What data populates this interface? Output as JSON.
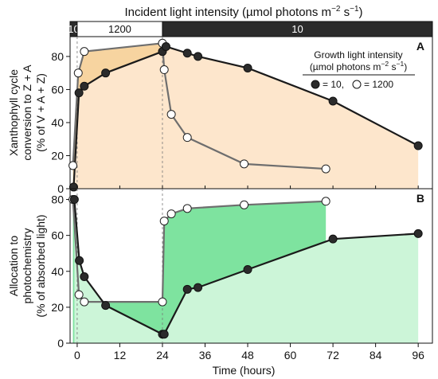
{
  "header": {
    "title_prefix": "Incident light intensity (µmol photons m",
    "title_sup": "−2",
    "title_mid": " s",
    "title_sup2": "−1",
    "title_suffix": ")",
    "bar_segments": [
      {
        "label": "10",
        "from": -2,
        "to": 0,
        "fill": "#2b2b2b",
        "text": "#ffffff"
      },
      {
        "label": "1200",
        "from": 0,
        "to": 24,
        "fill": "#ffffff",
        "text": "#111111"
      },
      {
        "label": "10",
        "from": 24,
        "to": 100,
        "fill": "#2b2b2b",
        "text": "#ffffff"
      }
    ]
  },
  "legend": {
    "title_line1": "Growth light intensity",
    "title_line2_prefix": "(µmol photons m",
    "title_line2_sup": "−2",
    "title_line2_mid": " s",
    "title_line2_sup2": "−1",
    "title_line2_suffix": ")",
    "entry_dark": "= 10,",
    "entry_light": "= 1200"
  },
  "colors": {
    "panelA_fill_dark": "#f7d4a0",
    "panelA_fill_light": "#fde6cc",
    "panelB_fill_dark": "#7ee39f",
    "panelB_fill_light": "#ccf5d8",
    "line_dark": "#1a1a1a",
    "line_light": "#6e6e6e"
  },
  "chart_data": [
    {
      "panel": "A",
      "type": "line",
      "ylabel_lines": [
        "Xanthophyll cycle",
        "conversion to Z + A",
        "(% of V + A + Z)"
      ],
      "ylim": [
        0,
        92
      ],
      "yticks": [
        0,
        20,
        40,
        60,
        80
      ],
      "xlim": [
        -2,
        100
      ],
      "series": [
        {
          "name": "= 10",
          "marker": "filled",
          "x": [
            -1,
            0.5,
            2,
            8,
            24,
            25,
            31,
            34,
            48,
            72,
            96
          ],
          "y": [
            1,
            58,
            62,
            70,
            83,
            86,
            82,
            80,
            73,
            53,
            26
          ]
        },
        {
          "name": "= 1200",
          "marker": "open",
          "x": [
            -1.2,
            0.3,
            2,
            24,
            24.5,
            26.5,
            31,
            47,
            70
          ],
          "y": [
            14,
            70,
            83,
            88,
            72,
            45,
            31,
            15,
            12
          ]
        }
      ]
    },
    {
      "panel": "B",
      "type": "line",
      "ylabel_lines": [
        "Allocation to",
        "photochemistry",
        "(% of absorbed light)"
      ],
      "ylim": [
        0,
        86
      ],
      "yticks": [
        0,
        20,
        40,
        60,
        80
      ],
      "xlim": [
        -2,
        100
      ],
      "xticks": [
        0,
        12,
        24,
        36,
        48,
        60,
        72,
        84,
        96
      ],
      "xlabel": "Time (hours)",
      "series": [
        {
          "name": "= 10",
          "marker": "filled",
          "x": [
            -0.8,
            0.6,
            2,
            8,
            24,
            24.5,
            31,
            34,
            48,
            72,
            96
          ],
          "y": [
            80,
            46,
            37,
            21,
            5,
            5,
            30,
            31,
            41,
            58,
            61
          ]
        },
        {
          "name": "= 1200",
          "marker": "open",
          "x": [
            -1.2,
            0.5,
            2,
            24,
            24.5,
            26.5,
            31,
            47,
            70
          ],
          "y": [
            80,
            27,
            23,
            23,
            68,
            72,
            75,
            77,
            79
          ]
        }
      ]
    }
  ]
}
